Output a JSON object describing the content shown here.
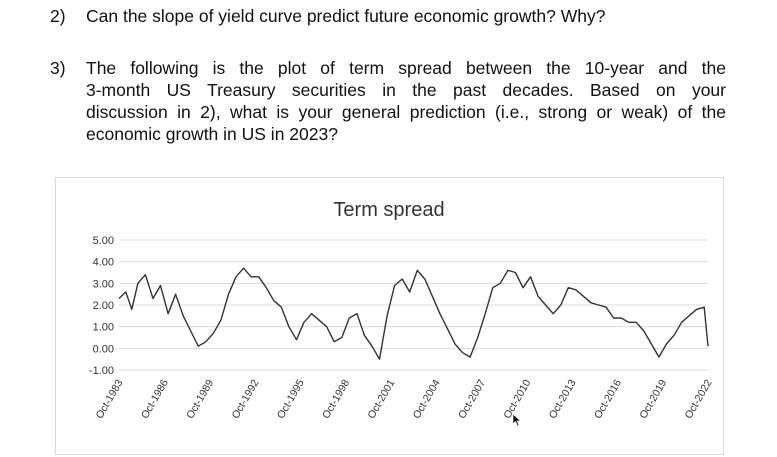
{
  "question2": {
    "number": "2)",
    "text": "Can the slope of yield curve predict future economic growth? Why?"
  },
  "question3": {
    "number": "3)",
    "lines": [
      "The following is the plot of term spread between the 10-year and the",
      "3-month US Treasury securities in the past decades. Based on your",
      "discussion in 2), what is your general prediction (i.e., strong or weak) of the",
      "economic growth in US in 2023?"
    ]
  },
  "chart_data": {
    "type": "line",
    "title": "Term spread",
    "ylim": [
      -1,
      5
    ],
    "y_ticks": [
      "-1.00",
      "0.00",
      "1.00",
      "2.00",
      "3.00",
      "4.00",
      "5.00"
    ],
    "x_ticks": [
      "Oct-1983",
      "Oct-1986",
      "Oct-1989",
      "Oct-1992",
      "Oct-1995",
      "Oct-1998",
      "Oct-2001",
      "Oct-2004",
      "Oct-2007",
      "Oct-2010",
      "Oct-2013",
      "Oct-2016",
      "Oct-2019",
      "Oct-2022"
    ],
    "grid": true,
    "line_color": "#333333",
    "series": [
      {
        "x": [
          1983.75,
          1984.2,
          1984.6,
          1985.0,
          1985.5,
          1986.0,
          1986.5,
          1987.0,
          1987.5,
          1988.0,
          1988.5,
          1989.0,
          1989.5,
          1990.0,
          1990.5,
          1991.0,
          1991.5,
          1992.0,
          1992.5,
          1993.0,
          1993.5,
          1994.0,
          1994.5,
          1995.0,
          1995.5,
          1996.0,
          1996.5,
          1997.0,
          1997.5,
          1998.0,
          1998.5,
          1999.0,
          1999.5,
          2000.0,
          2000.5,
          2001.0,
          2001.5,
          2002.0,
          2002.5,
          2003.0,
          2003.5,
          2004.0,
          2004.5,
          2005.0,
          2005.5,
          2006.0,
          2006.5,
          2007.0,
          2007.5,
          2008.0,
          2008.5,
          2009.0,
          2009.5,
          2010.0,
          2010.5,
          2011.0,
          2011.5,
          2012.0,
          2012.5,
          2013.0,
          2013.5,
          2014.0,
          2014.5,
          2015.0,
          2015.5,
          2016.0,
          2016.5,
          2017.0,
          2017.5,
          2018.0,
          2018.5,
          2019.0,
          2019.5,
          2020.0,
          2020.5,
          2021.0,
          2021.5,
          2022.0,
          2022.5,
          2022.75
        ],
        "y": [
          2.3,
          2.6,
          1.8,
          3.0,
          3.4,
          2.3,
          2.9,
          1.6,
          2.5,
          1.5,
          0.8,
          0.1,
          0.3,
          0.7,
          1.3,
          2.5,
          3.3,
          3.7,
          3.3,
          3.3,
          2.8,
          2.2,
          1.9,
          1.0,
          0.4,
          1.2,
          1.6,
          1.3,
          1.0,
          0.3,
          0.5,
          1.4,
          1.6,
          0.6,
          0.1,
          -0.5,
          1.5,
          2.9,
          3.2,
          2.6,
          3.6,
          3.2,
          2.4,
          1.6,
          0.9,
          0.2,
          -0.2,
          -0.4,
          0.5,
          1.6,
          2.8,
          3.0,
          3.6,
          3.5,
          2.8,
          3.3,
          2.4,
          2.0,
          1.6,
          2.0,
          2.8,
          2.7,
          2.4,
          2.1,
          2.0,
          1.9,
          1.4,
          1.4,
          1.2,
          1.2,
          0.8,
          0.2,
          -0.4,
          0.2,
          0.6,
          1.2,
          1.5,
          1.8,
          1.9,
          0.1
        ]
      }
    ]
  }
}
